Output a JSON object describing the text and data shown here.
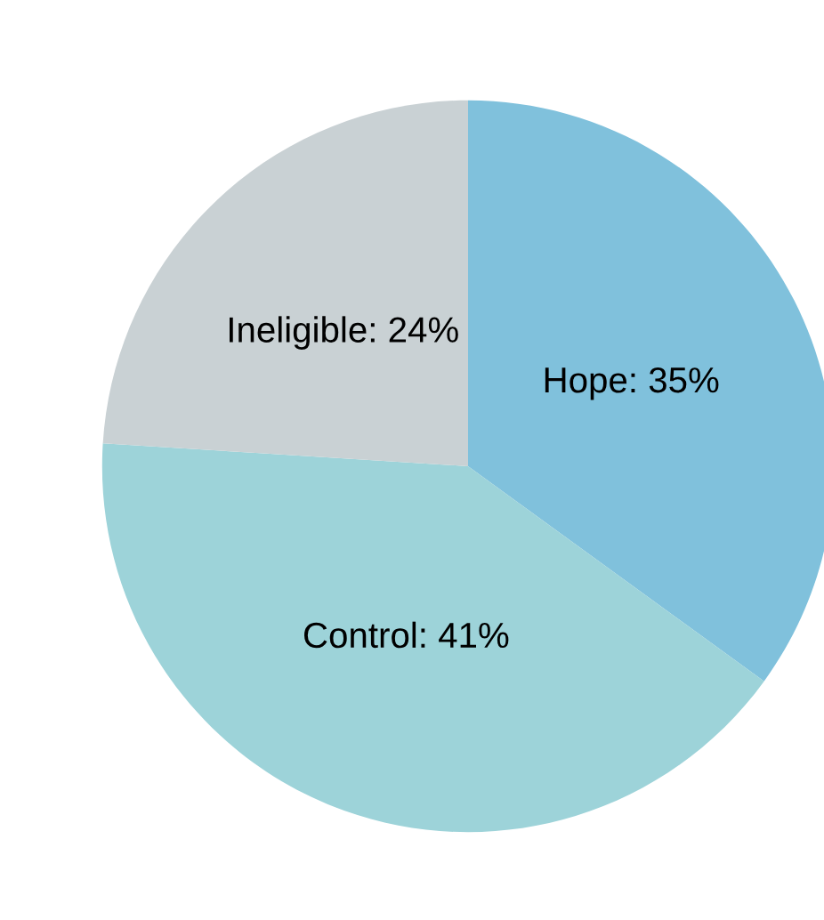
{
  "chart_data": {
    "type": "pie",
    "categories": [
      "Hope",
      "Control",
      "Ineligible"
    ],
    "values": [
      35,
      41,
      24
    ],
    "value_labels": [
      "35%",
      "41%",
      "24%"
    ],
    "colors": [
      "#80c1dc",
      "#9dd3d9",
      "#c9d1d4"
    ]
  }
}
